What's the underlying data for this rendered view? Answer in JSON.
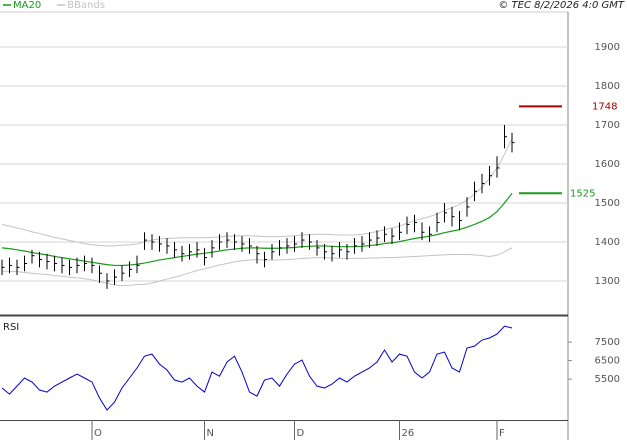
{
  "chart_data": [
    {
      "type": "ohlc",
      "source": "© TEC 8/2/2026 4:0 GMT",
      "categories": [
        null,
        null,
        null,
        null,
        null,
        null,
        null,
        null,
        null,
        null,
        null,
        null,
        "O",
        null,
        null,
        null,
        null,
        null,
        null,
        null,
        null,
        null,
        null,
        null,
        null,
        null,
        null,
        "N",
        null,
        null,
        null,
        null,
        null,
        null,
        null,
        null,
        null,
        null,
        null,
        "D",
        null,
        null,
        null,
        null,
        null,
        null,
        null,
        null,
        null,
        null,
        null,
        null,
        null,
        "26",
        null,
        null,
        null,
        null,
        null,
        null,
        null,
        null,
        null,
        null,
        null,
        null,
        "F",
        null,
        null
      ],
      "high": [
        1355,
        1360,
        1355,
        1365,
        1380,
        1375,
        1370,
        1365,
        1360,
        1355,
        1360,
        1365,
        1360,
        1340,
        1320,
        1330,
        1340,
        1350,
        1365,
        1425,
        1420,
        1415,
        1410,
        1400,
        1390,
        1395,
        1400,
        1385,
        1405,
        1420,
        1425,
        1420,
        1415,
        1410,
        1390,
        1375,
        1395,
        1405,
        1410,
        1415,
        1425,
        1420,
        1405,
        1395,
        1390,
        1400,
        1395,
        1410,
        1415,
        1425,
        1430,
        1440,
        1435,
        1450,
        1465,
        1470,
        1450,
        1440,
        1475,
        1500,
        1490,
        1480,
        1515,
        1555,
        1575,
        1595,
        1620,
        1700,
        1680
      ],
      "low": [
        1315,
        1320,
        1315,
        1325,
        1345,
        1335,
        1330,
        1325,
        1320,
        1315,
        1320,
        1325,
        1320,
        1295,
        1280,
        1290,
        1300,
        1310,
        1320,
        1380,
        1380,
        1375,
        1370,
        1360,
        1350,
        1355,
        1360,
        1340,
        1360,
        1380,
        1385,
        1380,
        1375,
        1370,
        1345,
        1335,
        1355,
        1365,
        1370,
        1375,
        1385,
        1380,
        1365,
        1355,
        1350,
        1360,
        1355,
        1370,
        1375,
        1385,
        1390,
        1400,
        1395,
        1405,
        1420,
        1425,
        1405,
        1400,
        1425,
        1450,
        1440,
        1430,
        1465,
        1505,
        1525,
        1545,
        1565,
        1640,
        1630
      ],
      "close": [
        1335,
        1340,
        1335,
        1345,
        1365,
        1355,
        1350,
        1345,
        1340,
        1335,
        1340,
        1345,
        1340,
        1320,
        1300,
        1310,
        1320,
        1330,
        1340,
        1405,
        1400,
        1395,
        1390,
        1380,
        1370,
        1375,
        1380,
        1360,
        1385,
        1400,
        1405,
        1400,
        1395,
        1390,
        1370,
        1355,
        1375,
        1385,
        1390,
        1395,
        1405,
        1400,
        1385,
        1375,
        1370,
        1380,
        1375,
        1390,
        1395,
        1405,
        1410,
        1420,
        1415,
        1425,
        1445,
        1450,
        1425,
        1420,
        1450,
        1475,
        1465,
        1455,
        1490,
        1530,
        1550,
        1570,
        1590,
        1670,
        1655
      ],
      "bar_color": "#000000",
      "series": [
        {
          "name": "MA20",
          "color": "#1a9a1a",
          "values": [
            1385,
            1383,
            1380,
            1377,
            1373,
            1370,
            1367,
            1363,
            1360,
            1357,
            1354,
            1351,
            1348,
            1345,
            1342,
            1340,
            1340,
            1341,
            1343,
            1346,
            1350,
            1354,
            1357,
            1360,
            1363,
            1366,
            1369,
            1371,
            1374,
            1377,
            1380,
            1382,
            1384,
            1385,
            1385,
            1384,
            1384,
            1384,
            1385,
            1386,
            1388,
            1389,
            1390,
            1390,
            1389,
            1388,
            1388,
            1388,
            1389,
            1391,
            1393,
            1396,
            1398,
            1401,
            1405,
            1409,
            1412,
            1415,
            1419,
            1424,
            1428,
            1432,
            1438,
            1445,
            1453,
            1463,
            1478,
            1500,
            1525
          ]
        },
        {
          "name": "BBands",
          "color": "#c4c4c4",
          "upper": [
            1445,
            1441,
            1436,
            1432,
            1426,
            1422,
            1417,
            1412,
            1408,
            1404,
            1400,
            1396,
            1393,
            1391,
            1390,
            1390,
            1392,
            1393,
            1395,
            1401,
            1405,
            1408,
            1409,
            1410,
            1411,
            1411,
            1411,
            1411,
            1412,
            1413,
            1415,
            1415,
            1416,
            1416,
            1415,
            1414,
            1414,
            1414,
            1415,
            1416,
            1418,
            1419,
            1420,
            1420,
            1419,
            1418,
            1418,
            1418,
            1420,
            1423,
            1427,
            1432,
            1436,
            1441,
            1448,
            1455,
            1460,
            1465,
            1472,
            1481,
            1488,
            1496,
            1508,
            1523,
            1541,
            1563,
            1590,
            1625,
            1665
          ],
          "lower": [
            1325,
            1325,
            1324,
            1322,
            1320,
            1318,
            1317,
            1314,
            1312,
            1310,
            1308,
            1306,
            1303,
            1299,
            1294,
            1290,
            1288,
            1289,
            1291,
            1291,
            1295,
            1300,
            1305,
            1310,
            1315,
            1321,
            1327,
            1331,
            1336,
            1341,
            1345,
            1349,
            1352,
            1354,
            1355,
            1354,
            1354,
            1354,
            1355,
            1356,
            1358,
            1359,
            1360,
            1360,
            1359,
            1358,
            1358,
            1358,
            1358,
            1359,
            1359,
            1360,
            1360,
            1361,
            1362,
            1363,
            1364,
            1365,
            1366,
            1367,
            1368,
            1368,
            1368,
            1367,
            1365,
            1363,
            1366,
            1375,
            1385
          ]
        }
      ],
      "levels": [
        {
          "value": 1748,
          "color": "#aa0000"
        },
        {
          "value": 1525,
          "color": "#1a9a1a"
        }
      ],
      "ylim": [
        1218,
        1995
      ],
      "yticks": [
        1300,
        1400,
        1500,
        1600,
        1700,
        1800,
        1900
      ],
      "grid": true
    },
    {
      "type": "line",
      "title": "RSI",
      "categories": [
        null,
        null,
        null,
        null,
        null,
        null,
        null,
        null,
        null,
        null,
        null,
        null,
        "O",
        null,
        null,
        null,
        null,
        null,
        null,
        null,
        null,
        null,
        null,
        null,
        null,
        null,
        null,
        "N",
        null,
        null,
        null,
        null,
        null,
        null,
        null,
        null,
        null,
        null,
        null,
        "D",
        null,
        null,
        null,
        null,
        null,
        null,
        null,
        null,
        null,
        null,
        null,
        null,
        null,
        "26",
        null,
        null,
        null,
        null,
        null,
        null,
        null,
        null,
        null,
        null,
        null,
        null,
        "F",
        null,
        null
      ],
      "color": "#0000cc",
      "values": [
        5020,
        4690,
        5120,
        5560,
        5340,
        4910,
        4800,
        5120,
        5340,
        5560,
        5770,
        5560,
        5340,
        4480,
        3830,
        4260,
        5020,
        5560,
        6100,
        6740,
        6850,
        6310,
        5990,
        5450,
        5340,
        5560,
        5120,
        4800,
        5880,
        5660,
        6420,
        6740,
        5880,
        4800,
        4580,
        5450,
        5560,
        5120,
        5770,
        6310,
        6530,
        5660,
        5120,
        5020,
        5230,
        5560,
        5340,
        5660,
        5880,
        6100,
        6420,
        7070,
        6420,
        6850,
        6740,
        5880,
        5560,
        5880,
        6850,
        6960,
        6100,
        5880,
        7180,
        7280,
        7610,
        7720,
        7930,
        8360,
        8260
      ],
      "ylim": [
        3400,
        8800
      ],
      "yticks": [
        5500,
        6500,
        7500
      ],
      "grid": false
    }
  ]
}
